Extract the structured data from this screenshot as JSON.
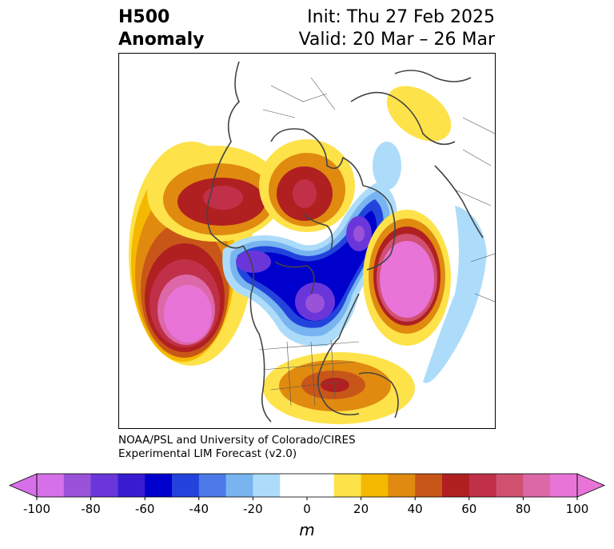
{
  "title": {
    "left_line1": "H500",
    "left_line2": "Anomaly",
    "right_line1": "Init: Thu 27 Feb 2025",
    "right_line2": "Valid: 20 Mar – 26 Mar"
  },
  "credit": {
    "line1": "NOAA/PSL and University of Colorado/CIRES",
    "line2": "Experimental LIM Forecast (v2.0)"
  },
  "colorbar": {
    "unit": "m",
    "ticks": [
      "-100",
      "-80",
      "-60",
      "-40",
      "-20",
      "0",
      "20",
      "40",
      "60",
      "80",
      "100"
    ],
    "colors": [
      "#d670e8",
      "#9a52d8",
      "#6a36da",
      "#3a1cd0",
      "#0000cc",
      "#2244dd",
      "#4c7ae8",
      "#78b4f0",
      "#acdcfa",
      "#ffffff",
      "#ffffff",
      "#fde24a",
      "#f5b800",
      "#e08a10",
      "#c85618",
      "#b02020",
      "#c03048",
      "#d05070",
      "#dc68a8",
      "#e874d8"
    ],
    "min_color": "#d670e8",
    "max_color": "#e874d8"
  },
  "map": {
    "projection": "north polar stereographic",
    "features": [
      "positive anomaly over Alaska / eastern Pacific",
      "positive anomaly over western Canada",
      "negative anomaly over Canada and Hudson Bay",
      "positive anomaly over North Atlantic",
      "positive anomaly over southeastern US / Gulf",
      "positive anomaly near Barents Sea",
      "weak negative anomaly over Europe"
    ]
  }
}
